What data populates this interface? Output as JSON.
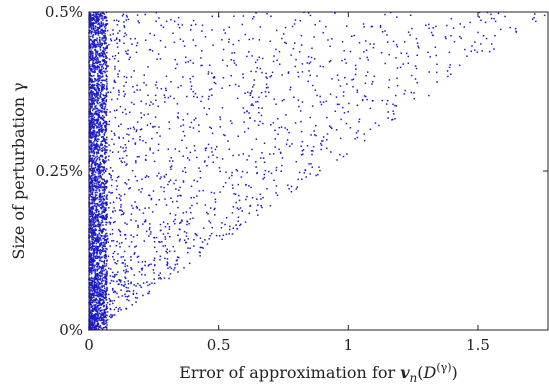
{
  "chart_data": {
    "type": "scatter",
    "title": "",
    "xlabel": "Error of approximation for v_n(D^(γ))",
    "xlabel_parts": {
      "prefix": "Error of approximation for ",
      "v": "v",
      "n": "n",
      "D": "D",
      "gamma_sup": "(γ)"
    },
    "ylabel": "Size of perturbation γ",
    "xlim": [
      0,
      1.77
    ],
    "ylim": [
      0,
      0.5
    ],
    "y_unit": "%",
    "xticks": [
      0,
      0.5,
      1,
      1.5
    ],
    "xtick_labels": [
      "0",
      "0.5",
      "1",
      "1.5"
    ],
    "yticks": [
      0,
      0.25,
      0.5
    ],
    "ytick_labels": [
      "0%",
      "0.25%",
      "0.5%"
    ],
    "grid": false,
    "legend": "none",
    "marker_color": "#1a1acc",
    "series": [
      {
        "distribution": {
          "n_points": 4200,
          "dense_band_x_max": 0.07,
          "spread": "x roughly uniform within a triangular region whose width grows with y; max x ≈ 3.5·y",
          "y_range": [
            0,
            0.5
          ]
        }
      }
    ]
  }
}
